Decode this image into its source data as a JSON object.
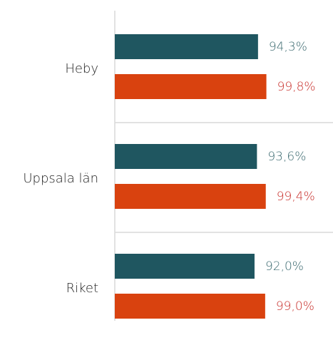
{
  "chart_data": {
    "type": "hbar",
    "categories": [
      "Heby",
      "Uppsala län",
      "Riket"
    ],
    "series": [
      {
        "color": "#1f5660",
        "label_color": "#3c6a70",
        "values": [
          94.3,
          93.6,
          92.0
        ],
        "value_labels": [
          "94,3%",
          "93,6%",
          "92,0%"
        ]
      },
      {
        "color": "#d9420f",
        "label_color": "#c8302c",
        "values": [
          99.8,
          99.4,
          99.0
        ],
        "value_labels": [
          "99,8%",
          "99,4%",
          "99,0%"
        ]
      }
    ],
    "xlim": [
      0,
      100
    ]
  }
}
